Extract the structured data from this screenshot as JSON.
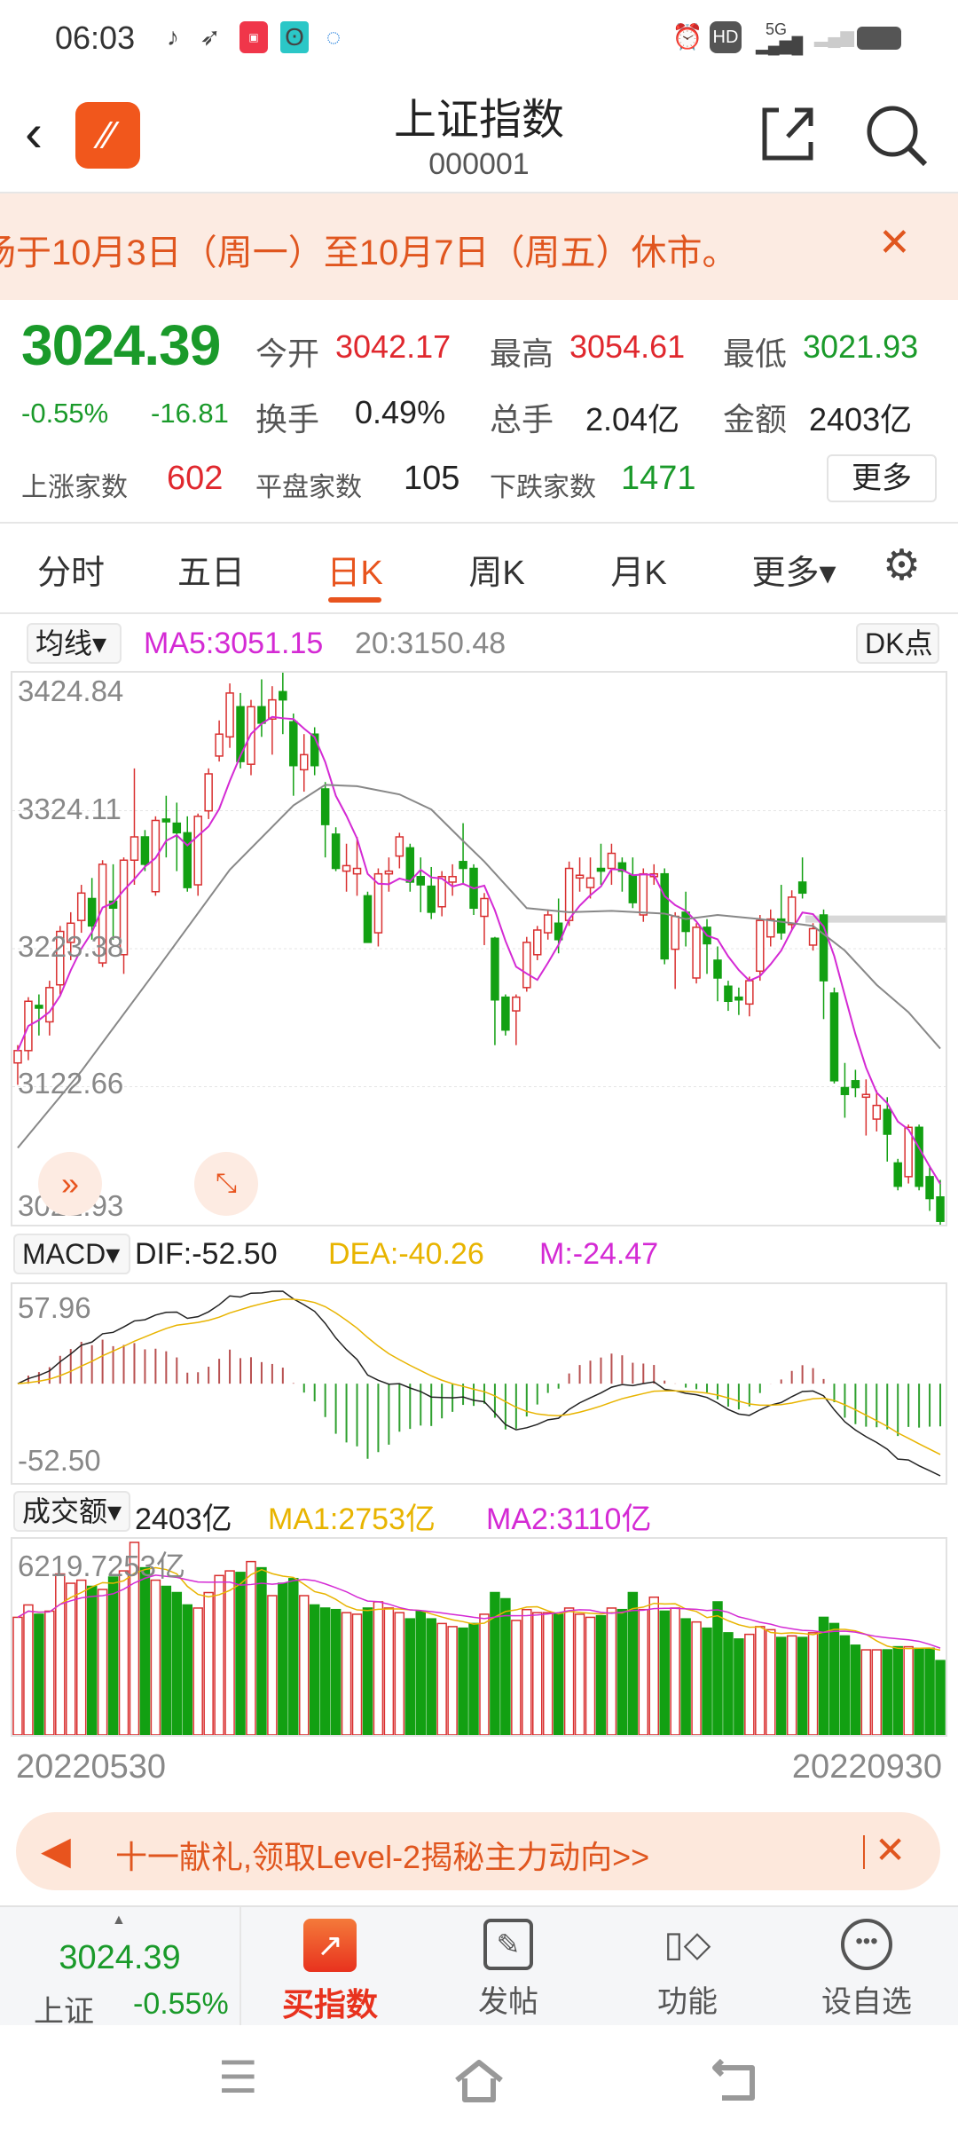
{
  "status_bar": {
    "time": "06:03",
    "network": "5G",
    "hd": "HD"
  },
  "header": {
    "title": "上证指数",
    "code": "000001"
  },
  "notice": {
    "text": "场于10月3日（周一）至10月7日（周五）休市。"
  },
  "quote": {
    "price": "3024.39",
    "change_pct": "-0.55%",
    "change": "-16.81",
    "open_label": "今开",
    "open": "3042.17",
    "high_label": "最高",
    "high": "3054.61",
    "low_label": "最低",
    "low": "3021.93",
    "turnover_label": "换手",
    "turnover": "0.49%",
    "volume_label": "总手",
    "volume": "2.04亿",
    "amount_label": "金额",
    "amount": "2403亿",
    "up_label": "上涨家数",
    "up": "602",
    "flat_label": "平盘家数",
    "flat": "105",
    "down_label": "下跌家数",
    "down": "1471",
    "more": "更多"
  },
  "tabs": [
    {
      "label": "分时"
    },
    {
      "label": "五日"
    },
    {
      "label": "日K",
      "active": true
    },
    {
      "label": "周K"
    },
    {
      "label": "月K"
    },
    {
      "label": "更多▾"
    }
  ],
  "kline": {
    "indicator": "均线▾",
    "ma5": "MA5:3051.15",
    "ma20": "20:3150.48",
    "dk": "DK点",
    "axis": [
      "3424.84",
      "3324.11",
      "3223.38",
      "3122.66",
      "3021.93"
    ],
    "colors": {
      "up": "#d93030",
      "down": "#12a012",
      "ma5": "#d42ad4",
      "ma20": "#888888"
    }
  },
  "macd": {
    "selector": "MACD▾",
    "dif": "DIF:-52.50",
    "dea": "DEA:-40.26",
    "m": "M:-24.47",
    "max": "57.96",
    "min": "-52.50"
  },
  "volume": {
    "selector": "成交额▾",
    "value": "2403亿",
    "ma1": "MA1:2753亿",
    "ma2": "MA2:3110亿",
    "max": "6219.7253亿"
  },
  "dates": {
    "start": "20220530",
    "end": "20220930"
  },
  "ad": {
    "text": "十一献礼,领取Level-2揭秘主力动向>>"
  },
  "bottom_nav": {
    "index_price": "3024.39",
    "index_name": "上证",
    "index_pct": "-0.55%",
    "items": [
      {
        "label": "买指数"
      },
      {
        "label": "发帖"
      },
      {
        "label": "功能"
      },
      {
        "label": "设自选"
      }
    ]
  },
  "chart_data": {
    "type": "candlestick",
    "ylim": [
      3021.93,
      3424.84
    ],
    "x_start": "20220530",
    "x_end": "20220930",
    "ohlc": [
      [
        3140,
        3153,
        3124,
        3149
      ],
      [
        3149,
        3188,
        3142,
        3185
      ],
      [
        3182,
        3190,
        3160,
        3180
      ],
      [
        3170,
        3200,
        3160,
        3195
      ],
      [
        3197,
        3240,
        3190,
        3236
      ],
      [
        3228,
        3250,
        3215,
        3242
      ],
      [
        3244,
        3270,
        3235,
        3264
      ],
      [
        3260,
        3275,
        3230,
        3240
      ],
      [
        3213,
        3288,
        3210,
        3285
      ],
      [
        3258,
        3285,
        3230,
        3253
      ],
      [
        3219,
        3290,
        3205,
        3288
      ],
      [
        3288,
        3355,
        3270,
        3305
      ],
      [
        3305,
        3310,
        3280,
        3285
      ],
      [
        3265,
        3320,
        3262,
        3317
      ],
      [
        3318,
        3335,
        3290,
        3316
      ],
      [
        3315,
        3330,
        3280,
        3308
      ],
      [
        3308,
        3320,
        3265,
        3268
      ],
      [
        3270,
        3322,
        3262,
        3320
      ],
      [
        3324,
        3355,
        3318,
        3351
      ],
      [
        3364,
        3390,
        3360,
        3380
      ],
      [
        3378,
        3417,
        3370,
        3410
      ],
      [
        3400,
        3410,
        3355,
        3360
      ],
      [
        3358,
        3405,
        3350,
        3400
      ],
      [
        3400,
        3420,
        3378,
        3388
      ],
      [
        3391,
        3415,
        3365,
        3405
      ],
      [
        3411,
        3425,
        3380,
        3405
      ],
      [
        3389,
        3395,
        3335,
        3357
      ],
      [
        3354,
        3380,
        3338,
        3365
      ],
      [
        3380,
        3385,
        3350,
        3357
      ],
      [
        3340,
        3345,
        3290,
        3314
      ],
      [
        3307,
        3312,
        3280,
        3282
      ],
      [
        3280,
        3300,
        3265,
        3284
      ],
      [
        3278,
        3305,
        3262,
        3282
      ],
      [
        3262,
        3265,
        3228,
        3228
      ],
      [
        3235,
        3282,
        3225,
        3278
      ],
      [
        3278,
        3290,
        3265,
        3280
      ],
      [
        3291,
        3308,
        3282,
        3305
      ],
      [
        3297,
        3300,
        3265,
        3272
      ],
      [
        3276,
        3290,
        3250,
        3270
      ],
      [
        3269,
        3283,
        3245,
        3250
      ],
      [
        3254,
        3280,
        3247,
        3276
      ],
      [
        3272,
        3285,
        3262,
        3276
      ],
      [
        3287,
        3315,
        3270,
        3282
      ],
      [
        3282,
        3285,
        3248,
        3253
      ],
      [
        3247,
        3264,
        3226,
        3260
      ],
      [
        3231,
        3232,
        3153,
        3186
      ],
      [
        3188,
        3190,
        3160,
        3164
      ],
      [
        3178,
        3190,
        3153,
        3188
      ],
      [
        3195,
        3232,
        3192,
        3228
      ],
      [
        3219,
        3240,
        3215,
        3237
      ],
      [
        3235,
        3252,
        3230,
        3248
      ],
      [
        3242,
        3260,
        3220,
        3230
      ],
      [
        3244,
        3287,
        3240,
        3282
      ],
      [
        3275,
        3290,
        3265,
        3277
      ],
      [
        3268,
        3290,
        3260,
        3275
      ],
      [
        3282,
        3300,
        3270,
        3280
      ],
      [
        3282,
        3300,
        3270,
        3293
      ],
      [
        3286,
        3290,
        3265,
        3280
      ],
      [
        3277,
        3290,
        3253,
        3257
      ],
      [
        3248,
        3282,
        3243,
        3278
      ],
      [
        3276,
        3285,
        3270,
        3278
      ],
      [
        3278,
        3282,
        3212,
        3216
      ],
      [
        3223,
        3250,
        3194,
        3247
      ],
      [
        3250,
        3265,
        3225,
        3236
      ],
      [
        3202,
        3242,
        3198,
        3239
      ],
      [
        3239,
        3245,
        3205,
        3227
      ],
      [
        3215,
        3225,
        3185,
        3202
      ],
      [
        3196,
        3200,
        3178,
        3185
      ],
      [
        3188,
        3195,
        3175,
        3186
      ],
      [
        3183,
        3203,
        3174,
        3200
      ],
      [
        3207,
        3248,
        3200,
        3244
      ],
      [
        3232,
        3252,
        3225,
        3245
      ],
      [
        3245,
        3270,
        3230,
        3235
      ],
      [
        3241,
        3266,
        3237,
        3261
      ],
      [
        3272,
        3290,
        3260,
        3264
      ],
      [
        3226,
        3242,
        3222,
        3238
      ],
      [
        3248,
        3252,
        3172,
        3200
      ],
      [
        3191,
        3195,
        3125,
        3127
      ],
      [
        3122,
        3140,
        3100,
        3117
      ],
      [
        3127,
        3135,
        3115,
        3122
      ],
      [
        3115,
        3128,
        3087,
        3117
      ],
      [
        3099,
        3120,
        3090,
        3109
      ],
      [
        3106,
        3115,
        3068,
        3088
      ],
      [
        3067,
        3070,
        3047,
        3050
      ],
      [
        3057,
        3095,
        3052,
        3093
      ],
      [
        3093,
        3095,
        3047,
        3050
      ],
      [
        3057,
        3065,
        3032,
        3041
      ],
      [
        3042.17,
        3054.61,
        3021.93,
        3024.39
      ]
    ],
    "ma20_points": [
      [
        0,
        3078
      ],
      [
        6,
        3134
      ],
      [
        13,
        3207
      ],
      [
        20,
        3281
      ],
      [
        26,
        3328
      ],
      [
        29,
        3343
      ],
      [
        32,
        3342
      ],
      [
        36,
        3336
      ],
      [
        39,
        3325
      ],
      [
        42,
        3302
      ],
      [
        44,
        3287
      ],
      [
        48,
        3253
      ],
      [
        52,
        3250
      ],
      [
        56,
        3251
      ],
      [
        61,
        3249
      ],
      [
        63,
        3245
      ],
      [
        66,
        3248
      ],
      [
        70,
        3245
      ],
      [
        75,
        3240
      ],
      [
        78,
        3222
      ],
      [
        81,
        3197
      ],
      [
        84,
        3177
      ],
      [
        87,
        3150.48
      ]
    ],
    "volume_yi": [
      3800,
      4200,
      3900,
      4000,
      5200,
      4900,
      5000,
      4800,
      4700,
      5100,
      5300,
      6219.7253,
      5400,
      5000,
      4800,
      4600,
      4200,
      4100,
      4600,
      5150,
      5300,
      5250,
      5600,
      5400,
      4500,
      4900,
      5050,
      4500,
      4200,
      4100,
      4050,
      3950,
      3900,
      4100,
      4300,
      4100,
      3950,
      3750,
      4000,
      3750,
      3600,
      3500,
      3450,
      3600,
      3900,
      4600,
      4400,
      3700,
      4050,
      3950,
      3950,
      3900,
      4100,
      3900,
      3800,
      3850,
      4100,
      4050,
      4600,
      4050,
      4450,
      4000,
      4100,
      3750,
      3650,
      3450,
      4300,
      3300,
      3100,
      3250,
      3500,
      3400,
      3150,
      3200,
      3150,
      3300,
      3800,
      3600,
      3200,
      2900,
      2750,
      2750,
      2750,
      2850,
      2850,
      2800,
      2800,
      2403
    ]
  }
}
